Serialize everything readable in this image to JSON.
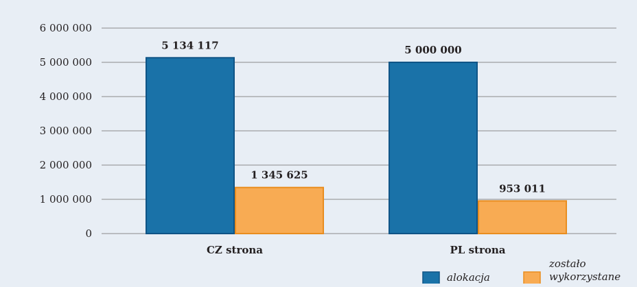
{
  "chart_data": {
    "type": "bar",
    "categories": [
      "CZ strona",
      "PL strona"
    ],
    "series": [
      {
        "name": "alokacja",
        "values": [
          5134117,
          5000000
        ],
        "labels": [
          "5 134 117",
          "5 000 000"
        ],
        "color": "#1a72a8"
      },
      {
        "name": "zostało wykorzystane",
        "legend_lines": [
          "zostało",
          "wykorzystane"
        ],
        "values": [
          1345625,
          953011
        ],
        "labels": [
          "1 345 625",
          "953 011"
        ],
        "color": "#f8ab53"
      }
    ],
    "y_ticks": [
      {
        "value": 0,
        "label": "0"
      },
      {
        "value": 1000000,
        "label": "1 000 000"
      },
      {
        "value": 2000000,
        "label": "2 000 000"
      },
      {
        "value": 3000000,
        "label": "3 000 000"
      },
      {
        "value": 4000000,
        "label": "4 000 000"
      },
      {
        "value": 5000000,
        "label": "5 000 000"
      },
      {
        "value": 6000000,
        "label": "6 000 000"
      }
    ],
    "ylim": [
      0,
      6000000
    ],
    "grid": true,
    "legend_position": "bottom-right",
    "colors": {
      "background": "#e8eef5",
      "grid": "#8a8a8a",
      "blue_border": "#0f5486",
      "orange_border": "#e98d1f"
    }
  }
}
